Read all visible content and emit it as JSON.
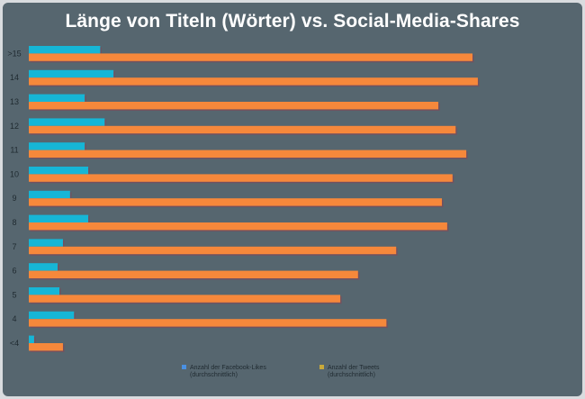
{
  "chart_data": {
    "type": "bar",
    "orientation": "horizontal",
    "title": "Länge von Titeln (Wörter) vs. Social-Media-Shares",
    "xlabel": "",
    "ylabel": "",
    "grid": false,
    "legend_position": "bottom",
    "categories": [
      ">15",
      "14",
      "13",
      "12",
      "11",
      "10",
      "9",
      "8",
      "7",
      "6",
      "5",
      "4",
      "<4"
    ],
    "xlim": [
      0,
      100
    ],
    "series": [
      {
        "name": "Anzahl der Facebook-Likes (durchschnittlich)",
        "legend_lines": [
          "Anzahl der Facebook-Likes",
          "(durchschnittlich)"
        ],
        "color": "#16b6d6",
        "legend_color": "#4a90e2",
        "values": [
          16.1,
          19.1,
          12.6,
          17.1,
          12.6,
          13.4,
          9.3,
          13.4,
          7.7,
          6.5,
          6.9,
          10.2,
          1.2
        ]
      },
      {
        "name": "Anzahl der Tweets (durchschnittlich)",
        "legend_lines": [
          "Anzahl der Tweets",
          "(durchschnittlich)"
        ],
        "color": "#f6883b",
        "legend_color": "#c9a93a",
        "values": [
          100,
          101.2,
          92.3,
          96.2,
          98.6,
          95.5,
          93.1,
          94.3,
          82.8,
          74.2,
          70.2,
          80.6,
          7.7
        ]
      }
    ]
  }
}
